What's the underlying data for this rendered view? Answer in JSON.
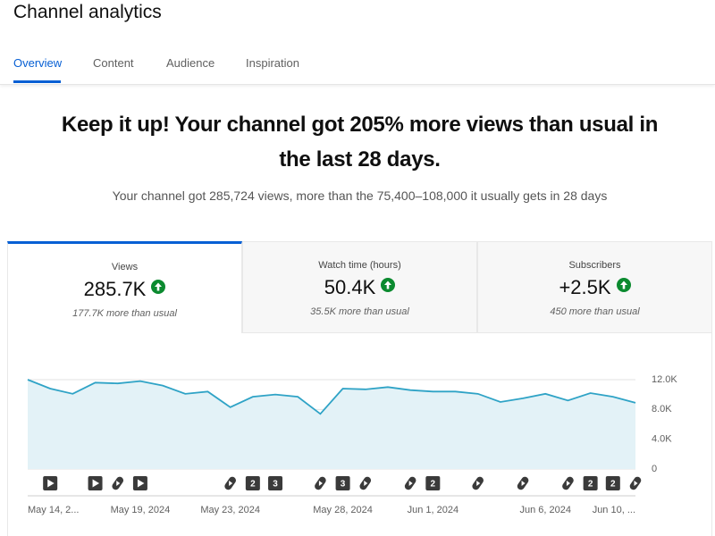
{
  "header": {
    "title": "Channel analytics",
    "tabs": [
      "Overview",
      "Content",
      "Audience",
      "Inspiration"
    ]
  },
  "summary": {
    "headline": "Keep it up! Your channel got 205% more views than usual in the last 28 days.",
    "detail": "Your channel got 285,724 views, more than the 75,400–108,000 it usually gets in 28 days"
  },
  "cards": [
    {
      "label": "Views",
      "value": "285.7K",
      "note": "177.7K more than usual"
    },
    {
      "label": "Watch time (hours)",
      "value": "50.4K",
      "note": "35.5K more than usual"
    },
    {
      "label": "Subscribers",
      "value": "+2.5K",
      "note": "450 more than usual"
    }
  ],
  "chart_data": {
    "type": "area",
    "categories": [
      "May 14, 2...",
      null,
      null,
      null,
      null,
      "May 19, 2024",
      null,
      null,
      null,
      "May 23, 2024",
      null,
      null,
      null,
      null,
      "May 28, 2024",
      null,
      null,
      null,
      "Jun 1, 2024",
      null,
      null,
      null,
      null,
      "Jun 6, 2024",
      null,
      null,
      null,
      "Jun 10, ..."
    ],
    "values": [
      12000,
      10800,
      10100,
      11600,
      11500,
      11800,
      11200,
      10100,
      10400,
      8300,
      9700,
      10000,
      9700,
      7400,
      10800,
      10700,
      11000,
      10600,
      10400,
      10400,
      10100,
      9000,
      9500,
      10100,
      9200,
      10200,
      9700,
      8900
    ],
    "color": "#2fa3c6",
    "fill_color": "#e3f2f7",
    "ylim": [
      0,
      12000
    ],
    "yticks": [
      0,
      {
        "value": 4000,
        "label": "4.0K"
      },
      {
        "value": 8000,
        "label": "8.0K"
      },
      {
        "value": 12000,
        "label": "12.0K"
      }
    ],
    "grid": true,
    "upload_badges": [
      "2",
      "3",
      "3",
      "2",
      "2",
      "2"
    ]
  }
}
